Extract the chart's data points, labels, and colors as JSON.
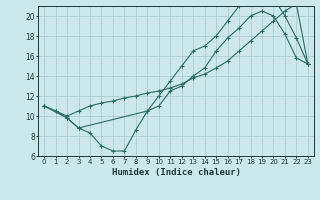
{
  "xlabel": "Humidex (Indice chaleur)",
  "background_color": "#cce8ec",
  "grid_color": "#aacdd4",
  "line_color": "#2d6b65",
  "xlim": [
    -0.5,
    23.5
  ],
  "ylim": [
    6,
    21
  ],
  "xticks": [
    0,
    1,
    2,
    3,
    4,
    5,
    6,
    7,
    8,
    9,
    10,
    11,
    12,
    13,
    14,
    15,
    16,
    17,
    18,
    19,
    20,
    21,
    22,
    23
  ],
  "yticks": [
    6,
    8,
    10,
    12,
    14,
    16,
    18,
    20
  ],
  "line1_x": [
    0,
    1,
    2,
    3,
    4,
    5,
    6,
    7,
    8,
    9,
    10,
    11,
    12,
    13,
    14,
    15,
    16,
    17,
    18,
    19,
    20,
    21,
    22,
    23
  ],
  "line1_y": [
    11.0,
    10.5,
    9.8,
    8.8,
    8.3,
    7.0,
    6.5,
    6.5,
    8.6,
    10.5,
    11.0,
    12.5,
    13.0,
    14.0,
    14.8,
    16.5,
    17.8,
    18.8,
    20.0,
    20.5,
    20.0,
    18.2,
    15.8,
    15.2
  ],
  "line2_x": [
    0,
    1,
    2,
    3,
    4,
    5,
    6,
    7,
    8,
    9,
    10,
    11,
    12,
    13,
    14,
    15,
    16,
    17,
    18,
    19,
    20,
    21,
    22,
    23
  ],
  "line2_y": [
    11.0,
    10.5,
    10.0,
    10.5,
    11.0,
    11.3,
    11.5,
    11.8,
    12.0,
    12.3,
    12.5,
    12.8,
    13.2,
    13.8,
    14.2,
    14.8,
    15.5,
    16.5,
    17.5,
    18.5,
    19.5,
    20.5,
    21.2,
    15.2
  ],
  "line3_x": [
    0,
    2,
    3,
    9,
    10,
    11,
    12,
    13,
    14,
    15,
    16,
    17,
    18,
    19,
    20,
    21,
    22,
    23
  ],
  "line3_y": [
    11.0,
    9.8,
    8.8,
    10.5,
    12.0,
    13.5,
    15.0,
    16.5,
    17.0,
    18.0,
    19.5,
    21.0,
    21.2,
    21.5,
    21.8,
    20.0,
    17.8,
    15.2
  ]
}
